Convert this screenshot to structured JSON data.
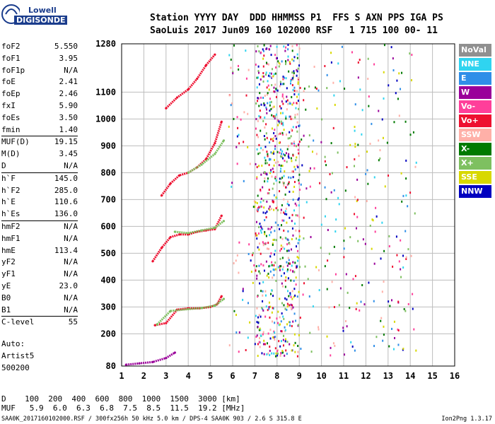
{
  "logo": {
    "line1": "Lowell",
    "line2": "DIGISONDE"
  },
  "header": {
    "row1": "Station YYYY DAY  DDD HHMMSS P1  FFS S AXN PPS IGA PS",
    "row2": "SaoLuis 2017 Jun09 160 102000 RSF   1 715 100 00- 11"
  },
  "params": [
    {
      "k": "foF2",
      "v": "5.550"
    },
    {
      "k": "foF1",
      "v": "3.95"
    },
    {
      "k": "foF1p",
      "v": "N/A"
    },
    {
      "k": "foE",
      "v": "2.41"
    },
    {
      "k": "foEp",
      "v": "2.46"
    },
    {
      "k": "fxI",
      "v": "5.90"
    },
    {
      "k": "foEs",
      "v": "3.50"
    },
    {
      "k": "fmin",
      "v": "1.40"
    },
    {
      "k": "MUF(D)",
      "v": "19.15",
      "sep": true
    },
    {
      "k": "M(D)",
      "v": "3.45"
    },
    {
      "k": "D",
      "v": "N/A"
    },
    {
      "k": "h`F",
      "v": "145.0",
      "sep": true
    },
    {
      "k": "h`F2",
      "v": "285.0"
    },
    {
      "k": "h`E",
      "v": "110.6"
    },
    {
      "k": "h`Es",
      "v": "136.0"
    },
    {
      "k": "hmF2",
      "v": "N/A",
      "sep": true
    },
    {
      "k": "hmF1",
      "v": "N/A"
    },
    {
      "k": "hmE",
      "v": "113.4"
    },
    {
      "k": "yF2",
      "v": "N/A"
    },
    {
      "k": "yF1",
      "v": "N/A"
    },
    {
      "k": "yE",
      "v": "23.0"
    },
    {
      "k": "B0",
      "v": "N/A"
    },
    {
      "k": "B1",
      "v": "N/A"
    },
    {
      "k": "C-level",
      "v": "55",
      "sep": true
    }
  ],
  "auto": {
    "l1": "Auto:",
    "l2": "Artist5",
    "l3": "500200"
  },
  "legend": [
    {
      "label": "NoVal",
      "color": "#909090"
    },
    {
      "label": "NNE",
      "color": "#2fd4f0"
    },
    {
      "label": "E",
      "color": "#2f8ee8"
    },
    {
      "label": "W",
      "color": "#9a009a"
    },
    {
      "label": "Vo-",
      "color": "#ff3f9a"
    },
    {
      "label": "Vo+",
      "color": "#ee1030"
    },
    {
      "label": "SSW",
      "color": "#ffb0a8"
    },
    {
      "label": "X-",
      "color": "#007a00"
    },
    {
      "label": "X+",
      "color": "#7ec060"
    },
    {
      "label": "SSE",
      "color": "#d8d800"
    },
    {
      "label": "NNW",
      "color": "#0000c0"
    }
  ],
  "chart_data": {
    "type": "scatter",
    "title": "",
    "xlabel": "",
    "ylabel": "",
    "xlim": [
      1,
      16
    ],
    "ylim": [
      80,
      1280
    ],
    "x_ticks": [
      "1",
      "2",
      "3",
      "4",
      "5",
      "6",
      "7",
      "8",
      "9",
      "10",
      "11",
      "12",
      "13",
      "14",
      "15",
      "16"
    ],
    "y_ticks": [
      "80",
      "200",
      "300",
      "400",
      "500",
      "600",
      "700",
      "800",
      "900",
      "1000",
      "1100",
      "1280"
    ],
    "grid": true,
    "series": [
      {
        "color": "#ee1030",
        "points": [
          [
            2.5,
            232
          ],
          [
            3.0,
            240
          ],
          [
            3.5,
            290
          ],
          [
            4.0,
            295
          ],
          [
            4.5,
            295
          ],
          [
            5.0,
            300
          ],
          [
            5.3,
            310
          ],
          [
            5.5,
            340
          ]
        ]
      },
      {
        "color": "#ee1030",
        "points": [
          [
            2.4,
            470
          ],
          [
            2.8,
            520
          ],
          [
            3.2,
            560
          ],
          [
            3.6,
            570
          ],
          [
            4.0,
            570
          ],
          [
            4.4,
            580
          ],
          [
            4.8,
            585
          ],
          [
            5.2,
            590
          ],
          [
            5.5,
            640
          ]
        ]
      },
      {
        "color": "#ee1030",
        "points": [
          [
            2.8,
            715
          ],
          [
            3.2,
            760
          ],
          [
            3.6,
            790
          ],
          [
            4.0,
            800
          ],
          [
            4.4,
            820
          ],
          [
            4.8,
            850
          ],
          [
            5.2,
            910
          ],
          [
            5.5,
            990
          ]
        ]
      },
      {
        "color": "#ee1030",
        "points": [
          [
            3.0,
            1040
          ],
          [
            3.5,
            1080
          ],
          [
            4.0,
            1110
          ],
          [
            4.4,
            1150
          ],
          [
            4.8,
            1200
          ],
          [
            5.2,
            1240
          ]
        ]
      },
      {
        "color": "#7ec060",
        "points": [
          [
            2.6,
            235
          ],
          [
            3.2,
            285
          ],
          [
            4.0,
            292
          ],
          [
            4.6,
            296
          ],
          [
            5.2,
            305
          ],
          [
            5.6,
            330
          ]
        ]
      },
      {
        "color": "#7ec060",
        "points": [
          [
            3.4,
            580
          ],
          [
            4.0,
            575
          ],
          [
            4.6,
            585
          ],
          [
            5.2,
            595
          ],
          [
            5.6,
            620
          ]
        ]
      },
      {
        "color": "#7ec060",
        "points": [
          [
            4.0,
            800
          ],
          [
            4.6,
            830
          ],
          [
            5.2,
            870
          ],
          [
            5.6,
            920
          ]
        ]
      },
      {
        "color": "#9a009a",
        "points": [
          [
            1.2,
            85
          ],
          [
            1.8,
            90
          ],
          [
            2.4,
            95
          ],
          [
            3.0,
            110
          ],
          [
            3.4,
            130
          ]
        ]
      }
    ]
  },
  "bottom": {
    "drow": "D    100  200  400  600  800  1000  1500  3000 [km]",
    "murow": "MUF   5.9  6.0  6.3  6.8  7.5  8.5  11.5  19.2 [MHz]"
  },
  "footer": {
    "left": "SAA0K_2017160102000.RSF / 300fx256h 50 kHz 5.0 km / DPS-4 SAA0K 903 / 2.6 S 315.8 E",
    "right": "Ion2Png 1.3.17"
  }
}
